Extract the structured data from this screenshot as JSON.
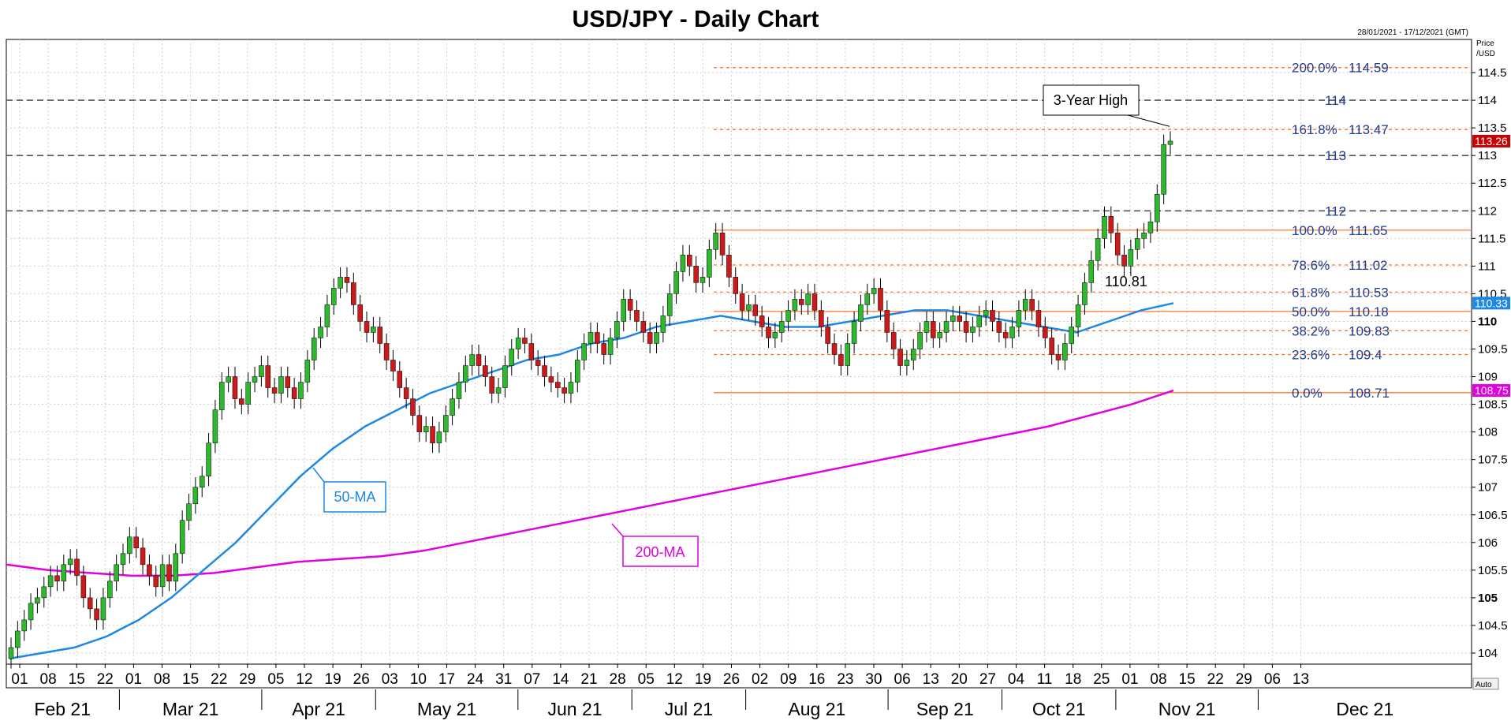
{
  "chart_data": {
    "type": "candlestick",
    "title": "USD/JPY - Daily Chart",
    "date_range": "28/01/2021 - 17/12/2021 (GMT)",
    "price_label": "Price",
    "unit_label": "/USD",
    "auto_label": "Auto",
    "ylim": [
      103.8,
      115.1
    ],
    "y_ticks": [
      104,
      104.5,
      105,
      105.5,
      106,
      106.5,
      107,
      107.5,
      108,
      108.5,
      109,
      109.5,
      110,
      110.5,
      111,
      111.5,
      112,
      112.5,
      113,
      113.5,
      114,
      114.5
    ],
    "y_ticks_bold": [
      105,
      110
    ],
    "x_day_ticks": [
      "01",
      "08",
      "15",
      "22",
      "01",
      "08",
      "15",
      "22",
      "29",
      "05",
      "12",
      "19",
      "26",
      "03",
      "10",
      "17",
      "24",
      "31",
      "07",
      "14",
      "21",
      "28",
      "05",
      "12",
      "19",
      "26",
      "02",
      "09",
      "16",
      "23",
      "30",
      "06",
      "13",
      "20",
      "27",
      "04",
      "11",
      "18",
      "25",
      "01",
      "08",
      "15",
      "22",
      "29",
      "06",
      "13"
    ],
    "months": [
      "Feb 21",
      "Mar 21",
      "Apr 21",
      "May 21",
      "Jun 21",
      "Jul 21",
      "Aug 21",
      "Sep 21",
      "Oct 21",
      "Nov 21",
      "Dec 21"
    ],
    "price_tags": [
      {
        "label": "113.26",
        "value": 113.26,
        "color": "#cc0000"
      },
      {
        "label": "110.33",
        "value": 110.33,
        "color": "#1e88e5"
      },
      {
        "label": "108.75",
        "value": 108.75,
        "color": "#e000e0"
      }
    ],
    "horizontal_levels": [
      {
        "label": "114",
        "value": 114
      },
      {
        "label": "113",
        "value": 113
      },
      {
        "label": "112",
        "value": 112
      }
    ],
    "fibonacci": [
      {
        "label": "200.0%",
        "value": 114.59,
        "text": "114.59",
        "style": "dashed"
      },
      {
        "label": "161.8%",
        "value": 113.47,
        "text": "113.47",
        "style": "dashed"
      },
      {
        "label": "100.0%",
        "value": 111.65,
        "text": "111.65",
        "style": "solid"
      },
      {
        "label": "78.6%",
        "value": 111.02,
        "text": "111.02",
        "style": "dashed"
      },
      {
        "label": "61.8%",
        "value": 110.53,
        "text": "110.53",
        "style": "dashed"
      },
      {
        "label": "50.0%",
        "value": 110.18,
        "text": "110.18",
        "style": "solid"
      },
      {
        "label": "38.2%",
        "value": 109.83,
        "text": "109.83",
        "style": "dashed"
      },
      {
        "label": "23.6%",
        "value": 109.4,
        "text": "109.4",
        "style": "dashed"
      },
      {
        "label": "0.0%",
        "value": 108.71,
        "text": "108.71",
        "style": "solid"
      }
    ],
    "annotations": [
      {
        "text": "3-Year High",
        "color": "#000000"
      },
      {
        "text": "110.81",
        "color": "#000000"
      },
      {
        "text": "50-MA",
        "color": "#1e88e5"
      },
      {
        "text": "200-MA",
        "color": "#e000e0"
      }
    ],
    "candles_approx_close": [
      104.1,
      104.4,
      104.6,
      104.9,
      105.0,
      105.2,
      105.4,
      105.3,
      105.6,
      105.7,
      105.4,
      105.0,
      104.8,
      104.6,
      105.0,
      105.3,
      105.6,
      105.8,
      106.1,
      105.9,
      105.6,
      105.4,
      105.2,
      105.6,
      105.3,
      105.8,
      106.4,
      106.7,
      107.0,
      107.2,
      107.8,
      108.4,
      108.9,
      109.0,
      108.6,
      108.5,
      108.9,
      109.0,
      109.2,
      108.8,
      108.7,
      109.0,
      108.8,
      108.6,
      108.9,
      109.3,
      109.7,
      109.9,
      110.3,
      110.6,
      110.8,
      110.7,
      110.3,
      110.0,
      109.8,
      109.9,
      109.6,
      109.3,
      109.1,
      108.8,
      108.6,
      108.3,
      108.0,
      108.1,
      107.8,
      108.0,
      108.3,
      108.6,
      108.9,
      109.2,
      109.4,
      109.2,
      109.0,
      108.7,
      108.8,
      109.2,
      109.5,
      109.7,
      109.6,
      109.3,
      109.2,
      109.0,
      108.9,
      108.8,
      108.7,
      108.9,
      109.3,
      109.6,
      109.8,
      109.6,
      109.4,
      109.7,
      110.0,
      110.4,
      110.2,
      110.0,
      109.8,
      109.6,
      109.8,
      110.1,
      110.5,
      110.9,
      111.2,
      111.0,
      110.7,
      110.8,
      111.3,
      111.6,
      111.2,
      110.8,
      110.5,
      110.2,
      110.3,
      110.1,
      109.9,
      109.7,
      109.8,
      110.0,
      110.2,
      110.4,
      110.3,
      110.5,
      110.2,
      109.9,
      109.6,
      109.4,
      109.2,
      109.6,
      110.0,
      110.3,
      110.5,
      110.6,
      110.2,
      109.8,
      109.5,
      109.2,
      109.3,
      109.5,
      109.8,
      110.0,
      109.7,
      109.8,
      110.0,
      110.1,
      110.0,
      109.8,
      109.9,
      110.1,
      110.2,
      110.0,
      109.8,
      109.7,
      109.9,
      110.2,
      110.4,
      110.2,
      109.9,
      109.7,
      109.4,
      109.3,
      109.6,
      109.9,
      110.3,
      110.7,
      111.1,
      111.5,
      111.9,
      111.6,
      111.2,
      111.0,
      111.3,
      111.5,
      111.6,
      111.8,
      112.3,
      113.2,
      113.26
    ],
    "ma50_approx": [
      103.9,
      104.0,
      104.1,
      104.3,
      104.6,
      105.0,
      105.5,
      106.0,
      106.6,
      107.2,
      107.7,
      108.1,
      108.4,
      108.7,
      108.9,
      109.1,
      109.3,
      109.4,
      109.6,
      109.7,
      109.9,
      110.0,
      110.1,
      110.0,
      109.9,
      109.9,
      110.0,
      110.1,
      110.2,
      110.2,
      110.1,
      110.0,
      109.9,
      109.8,
      110.0,
      110.2,
      110.33
    ],
    "ma200_approx": [
      105.6,
      105.5,
      105.45,
      105.4,
      105.4,
      105.45,
      105.55,
      105.65,
      105.7,
      105.75,
      105.85,
      106.0,
      106.15,
      106.3,
      106.45,
      106.6,
      106.75,
      106.9,
      107.05,
      107.2,
      107.35,
      107.5,
      107.65,
      107.8,
      107.95,
      108.1,
      108.3,
      108.5,
      108.75
    ]
  }
}
